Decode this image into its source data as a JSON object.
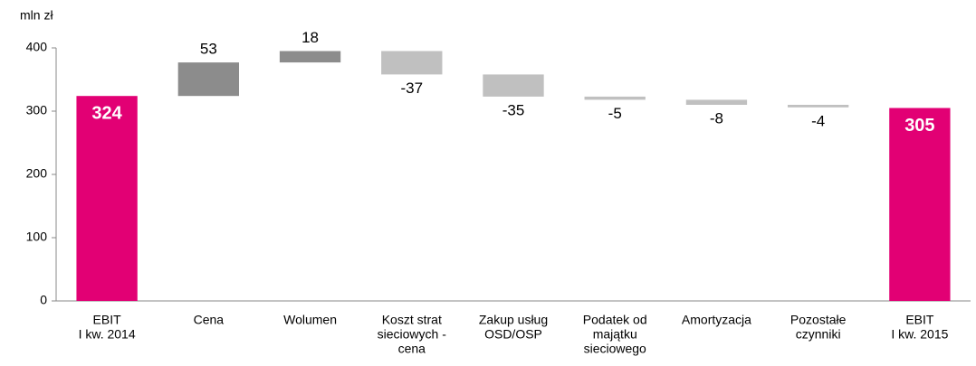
{
  "chart_data": {
    "type": "waterfall",
    "y_label": "mln zł",
    "categories": [
      [
        "EBIT",
        "I kw. 2014"
      ],
      [
        "Cena"
      ],
      [
        "Wolumen"
      ],
      [
        "Koszt strat",
        "sieciowych -",
        "cena"
      ],
      [
        "Zakup usług",
        "OSD/OSP"
      ],
      [
        "Podatek od",
        "majątku",
        "sieciowego"
      ],
      [
        "Amortyzacja"
      ],
      [
        "Pozostałe",
        "czynniki"
      ],
      [
        "EBIT",
        "I kw. 2015"
      ]
    ],
    "values": [
      324,
      53,
      18,
      -37,
      -35,
      -5,
      -8,
      -4,
      305
    ],
    "measure": [
      "total",
      "relative",
      "relative",
      "relative",
      "relative",
      "relative",
      "relative",
      "relative",
      "total"
    ],
    "colors": {
      "total": "#e20074",
      "increase": "#8c8c8c",
      "decrease": "#c0c0c0"
    },
    "ylim": [
      0,
      400
    ],
    "yticks": [
      0,
      100,
      200,
      300,
      400
    ]
  }
}
